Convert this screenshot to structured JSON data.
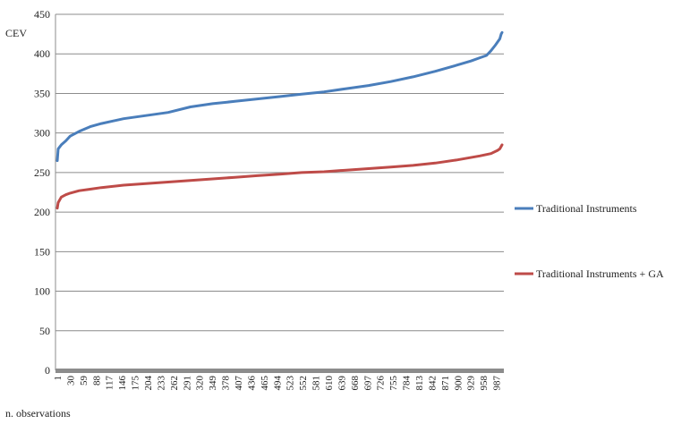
{
  "chart_data": {
    "type": "line",
    "ylabel": "CEV",
    "xlabel": "n. observations",
    "ylim": [
      0,
      450
    ],
    "y_ticks": [
      0,
      50,
      100,
      150,
      200,
      250,
      300,
      350,
      400,
      450
    ],
    "x_ticks": [
      "1",
      "30",
      "59",
      "88",
      "117",
      "146",
      "175",
      "204",
      "233",
      "262",
      "291",
      "320",
      "349",
      "378",
      "407",
      "436",
      "465",
      "494",
      "523",
      "552",
      "581",
      "610",
      "639",
      "668",
      "697",
      "726",
      "755",
      "784",
      "813",
      "842",
      "871",
      "900",
      "929",
      "958",
      "987"
    ],
    "n_observations": 1000,
    "grid": true,
    "legend_position": "right",
    "series": [
      {
        "name": "Traditional Instruments",
        "color": "#4a7ebb",
        "x": [
          1,
          3,
          10,
          20,
          30,
          50,
          75,
          100,
          150,
          200,
          250,
          300,
          350,
          400,
          450,
          500,
          550,
          600,
          650,
          700,
          750,
          800,
          850,
          900,
          930,
          950,
          965,
          975,
          985,
          995,
          998,
          1000
        ],
        "values": [
          265,
          280,
          285,
          290,
          296,
          302,
          308,
          312,
          318,
          322,
          326,
          333,
          337,
          340,
          343,
          346,
          349,
          352,
          356,
          360,
          365,
          371,
          378,
          386,
          391,
          395,
          398,
          404,
          411,
          419,
          425,
          427
        ]
      },
      {
        "name": "Traditional Instruments + GA",
        "color": "#be4b48",
        "x": [
          1,
          3,
          10,
          20,
          30,
          50,
          75,
          100,
          150,
          200,
          250,
          300,
          350,
          400,
          450,
          500,
          550,
          600,
          650,
          700,
          750,
          800,
          850,
          900,
          950,
          975,
          990,
          995,
          1000
        ],
        "values": [
          205,
          212,
          219,
          222,
          224,
          227,
          229,
          231,
          234,
          236,
          238,
          240,
          242,
          244,
          246,
          248,
          250,
          251,
          253,
          255,
          257,
          259,
          262,
          266,
          271,
          274,
          278,
          280,
          285
        ]
      }
    ]
  }
}
